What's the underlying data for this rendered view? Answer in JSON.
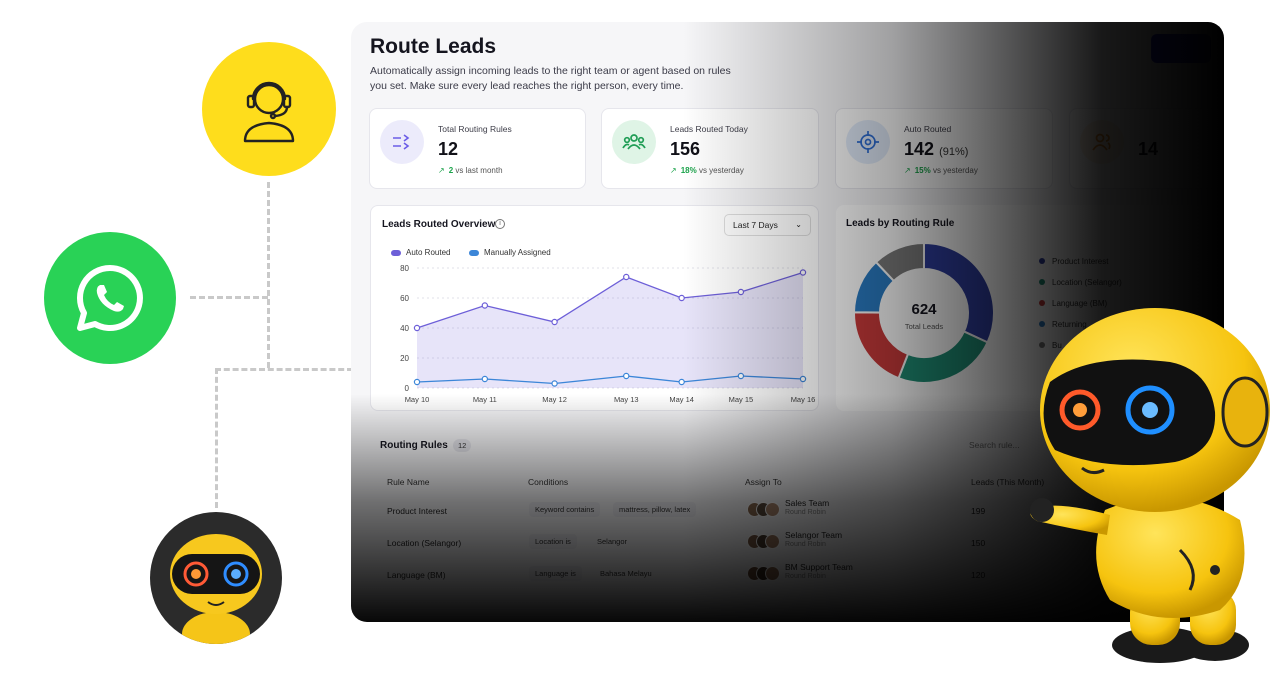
{
  "header": {
    "title": "Route Leads",
    "subtitle": "Automatically assign incoming leads to the right team or agent based on rules you set. Make sure every lead reaches the right person, every time."
  },
  "stats": [
    {
      "label": "Total Routing Rules",
      "value": "12",
      "value_suffix": "",
      "delta": "2",
      "delta_text": "vs last month",
      "icon": "routing-rules-icon",
      "accent": "#6b5ce7",
      "bg": "#ecebfb"
    },
    {
      "label": "Leads Routed Today",
      "value": "156",
      "value_suffix": "",
      "delta": "18%",
      "delta_text": "vs yesterday",
      "icon": "users-group-icon",
      "accent": "#1f9d55",
      "bg": "#dff4e6"
    },
    {
      "label": "Auto Routed",
      "value": "142",
      "value_suffix": "(91%)",
      "delta": "15%",
      "delta_text": "vs yesterday",
      "icon": "target-icon",
      "accent": "#2f6fd6",
      "bg": "#e2ecfb"
    },
    {
      "label": "",
      "value": "14",
      "value_suffix": "",
      "delta": "",
      "delta_text": "",
      "icon": "user-icon",
      "accent": "#e38a2c",
      "bg": "#fdf0e0"
    }
  ],
  "overview": {
    "title": "Leads Routed Overview",
    "range": "Last 7 Days"
  },
  "chart_data": {
    "type": "line",
    "x": [
      "May 10",
      "May 11",
      "May 12",
      "May 13",
      "May 14",
      "May 15",
      "May 16"
    ],
    "series": [
      {
        "name": "Auto Routed",
        "values": [
          40,
          55,
          44,
          74,
          60,
          64,
          77
        ],
        "color": "#6d5fd8"
      },
      {
        "name": "Manually Assigned",
        "values": [
          4,
          6,
          3,
          8,
          4,
          8,
          6
        ],
        "color": "#3c86d8"
      }
    ],
    "yticks": [
      0,
      20,
      40,
      60,
      80
    ],
    "ylim": [
      0,
      80
    ],
    "grid": true,
    "legend": "top-left"
  },
  "donut": {
    "title": "Leads by Routing Rule",
    "total": "624",
    "total_label": "Total Leads",
    "slices": [
      {
        "name": "Product Interest",
        "value": 199,
        "color": "#2f3ea0"
      },
      {
        "name": "Location (Selangor)",
        "value": 150,
        "color": "#1f8f76"
      },
      {
        "name": "Language (BM)",
        "value": 120,
        "color": "#c93a3a"
      },
      {
        "name": "Returning",
        "value": 80,
        "color": "#2a7cc4"
      },
      {
        "name": "Bu",
        "value": 75,
        "color": "#7c7c7c"
      }
    ]
  },
  "rules": {
    "title": "Routing Rules",
    "count": "12",
    "search_placeholder": "Search rule...",
    "columns": [
      "Rule Name",
      "Conditions",
      "Assign To",
      "Leads (This Month)"
    ],
    "rows": [
      {
        "name": "Product Interest",
        "cond_key": "Keyword contains",
        "cond_val": "mattress, pillow, latex",
        "team": "Sales Team",
        "mode": "Round Robin",
        "leads": "199"
      },
      {
        "name": "Location (Selangor)",
        "cond_key": "Location is",
        "cond_val": "Selangor",
        "team": "Selangor Team",
        "mode": "Round Robin",
        "leads": "150"
      },
      {
        "name": "Language (BM)",
        "cond_key": "Language is",
        "cond_val": "Bahasa Melayu",
        "team": "BM Support Team",
        "mode": "Round Robin",
        "leads": "120"
      }
    ]
  }
}
